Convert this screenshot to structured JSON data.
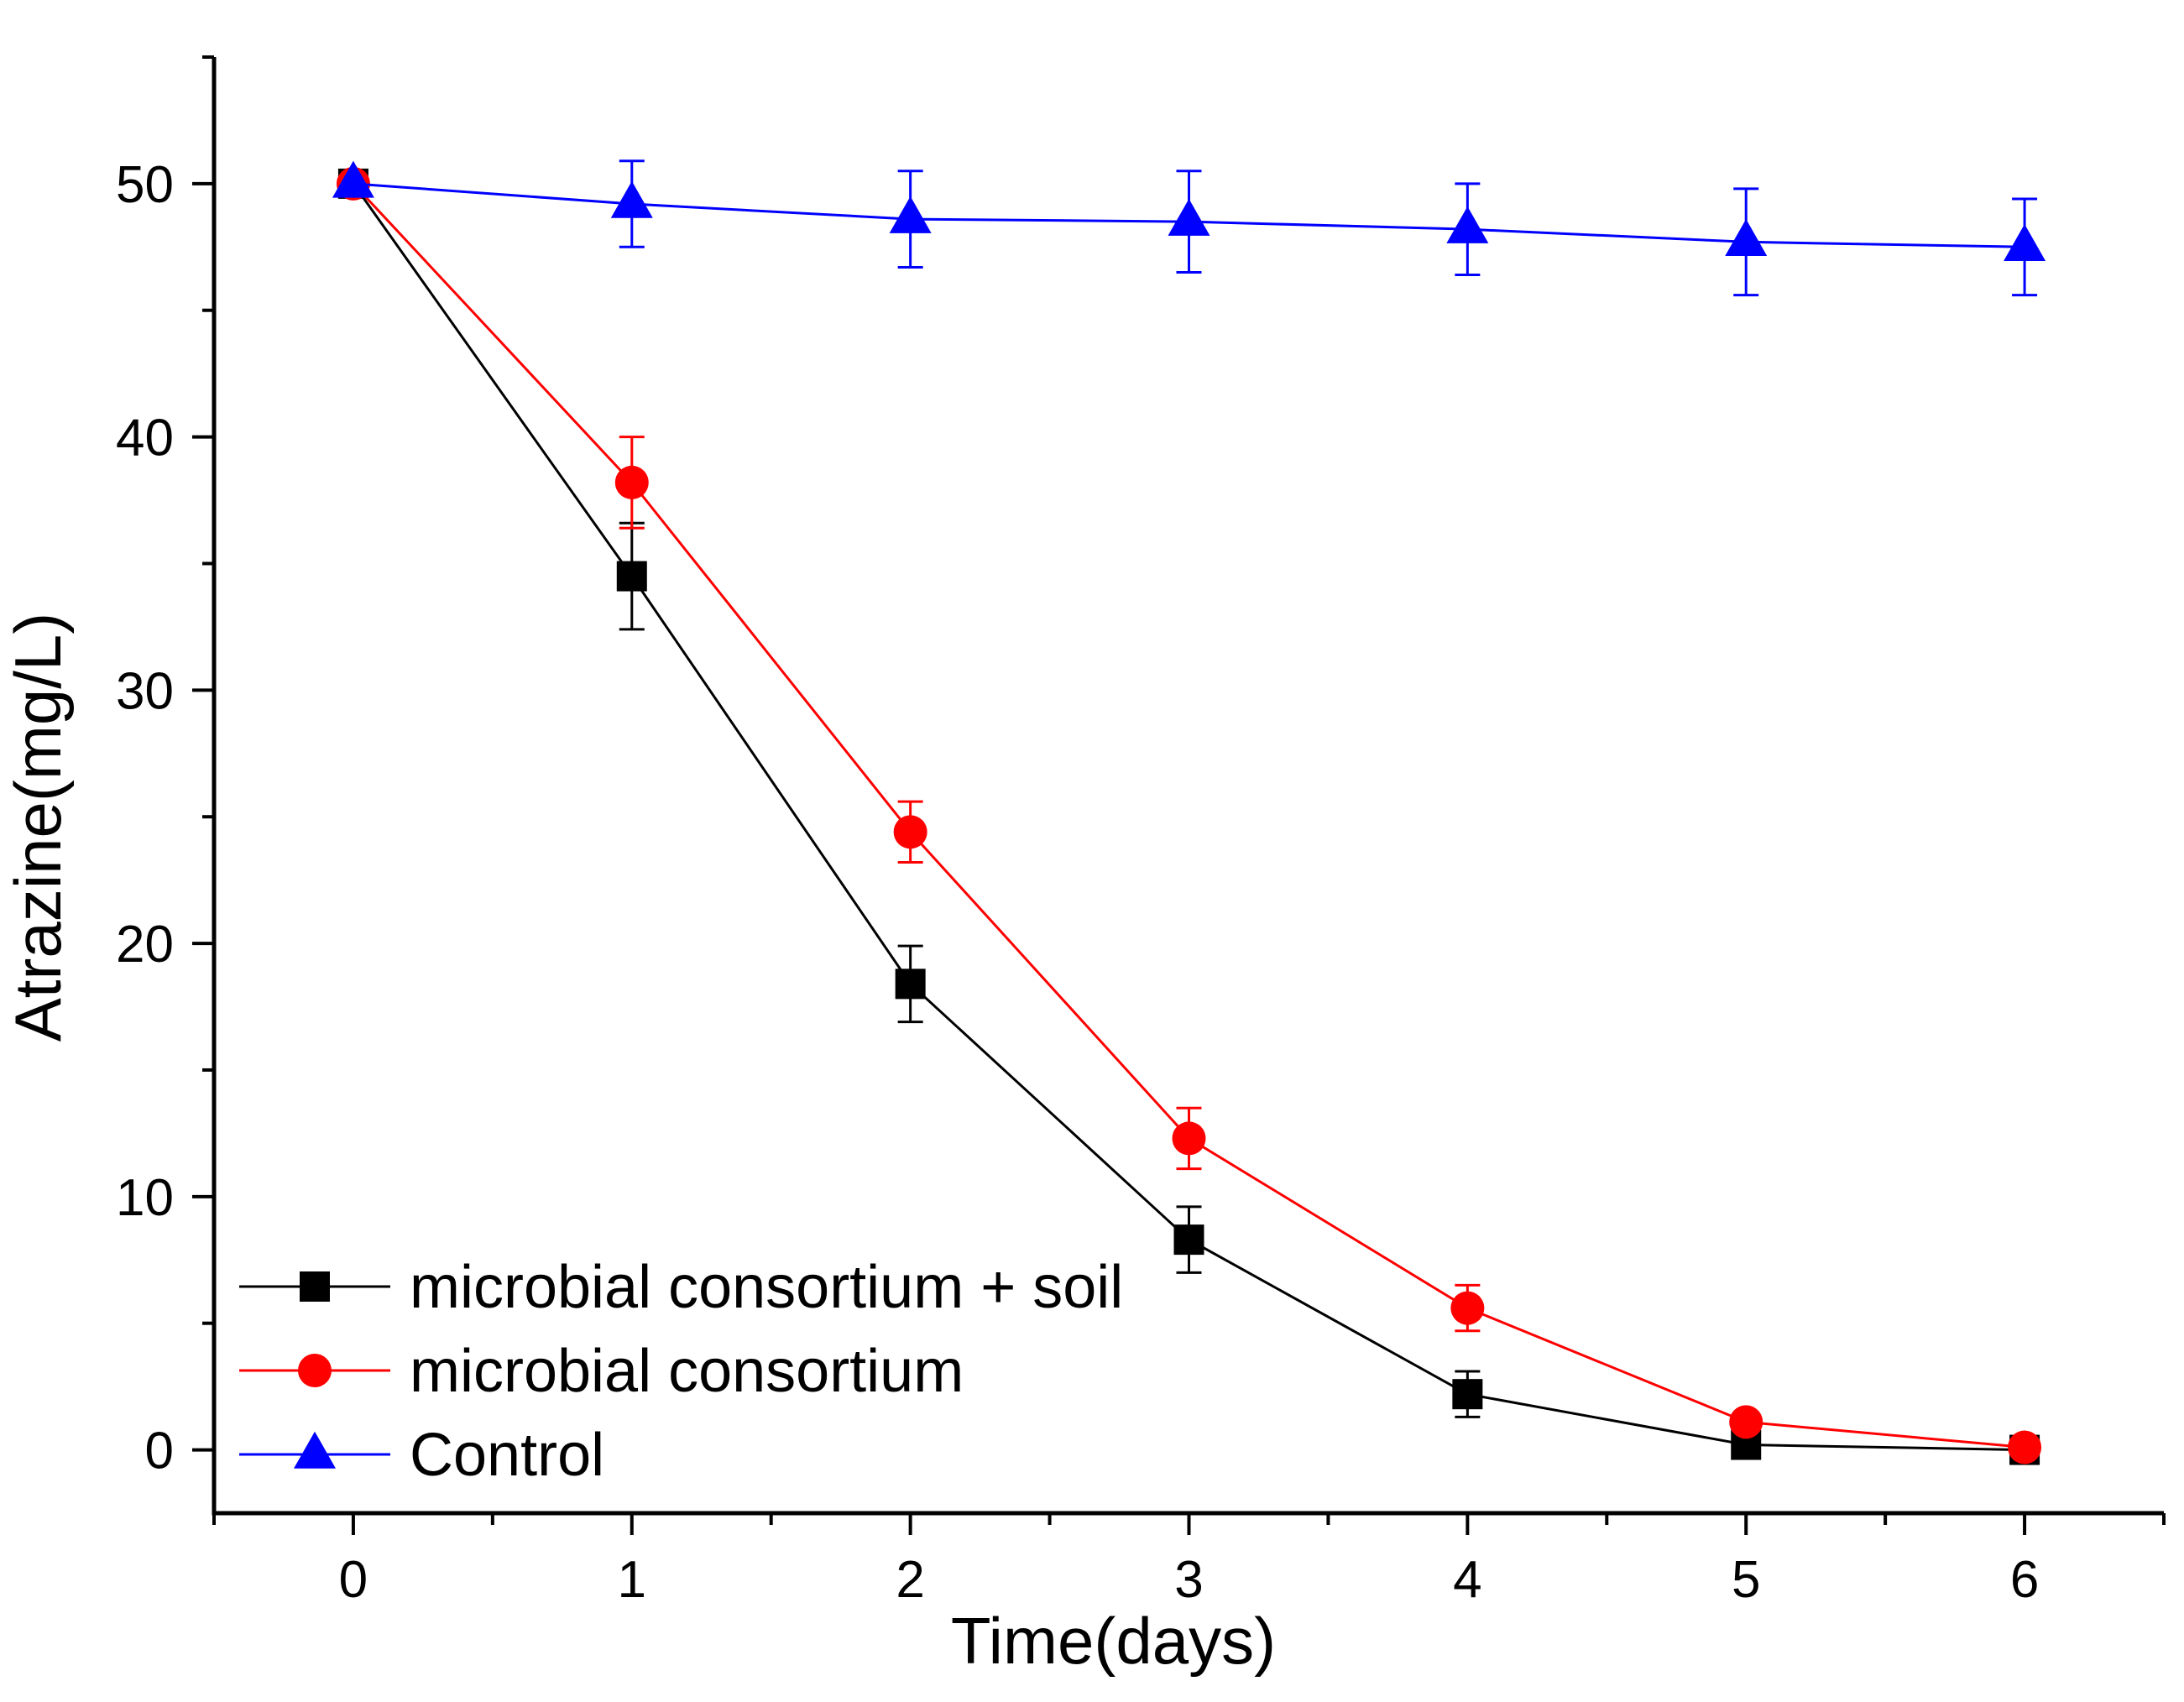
{
  "chart_data": {
    "type": "line",
    "title": "",
    "xlabel": "Time(days)",
    "ylabel": "Atrazine(mg/L)",
    "xlim": [
      -0.5,
      6.5
    ],
    "ylim": [
      -2.5,
      55
    ],
    "x_ticks": [
      0,
      1,
      2,
      3,
      4,
      5,
      6
    ],
    "y_ticks": [
      0,
      10,
      20,
      30,
      40,
      50
    ],
    "grid": false,
    "legend_position": "bottom-left",
    "series": [
      {
        "name": "microbial consortium + soil",
        "color": "#000000",
        "marker": "square",
        "x": [
          0,
          1,
          2,
          3,
          4,
          5,
          6
        ],
        "y": [
          50.0,
          34.5,
          18.4,
          8.3,
          2.2,
          0.2,
          0.0
        ],
        "err": [
          0.3,
          2.1,
          1.5,
          1.3,
          0.9,
          0.2,
          0.1
        ]
      },
      {
        "name": "microbial consortium",
        "color": "#ff0000",
        "marker": "circle",
        "x": [
          0,
          1,
          2,
          3,
          4,
          5,
          6
        ],
        "y": [
          50.0,
          38.2,
          24.4,
          12.3,
          5.6,
          1.1,
          0.1
        ],
        "err": [
          0.3,
          1.8,
          1.2,
          1.2,
          0.9,
          0.3,
          0.1
        ]
      },
      {
        "name": "Control",
        "color": "#0000ff",
        "marker": "triangle",
        "x": [
          0,
          1,
          2,
          3,
          4,
          5,
          6
        ],
        "y": [
          50.0,
          49.2,
          48.6,
          48.5,
          48.2,
          47.7,
          47.5
        ],
        "err": [
          0.3,
          1.7,
          1.9,
          2.0,
          1.8,
          2.1,
          1.9
        ]
      }
    ]
  }
}
